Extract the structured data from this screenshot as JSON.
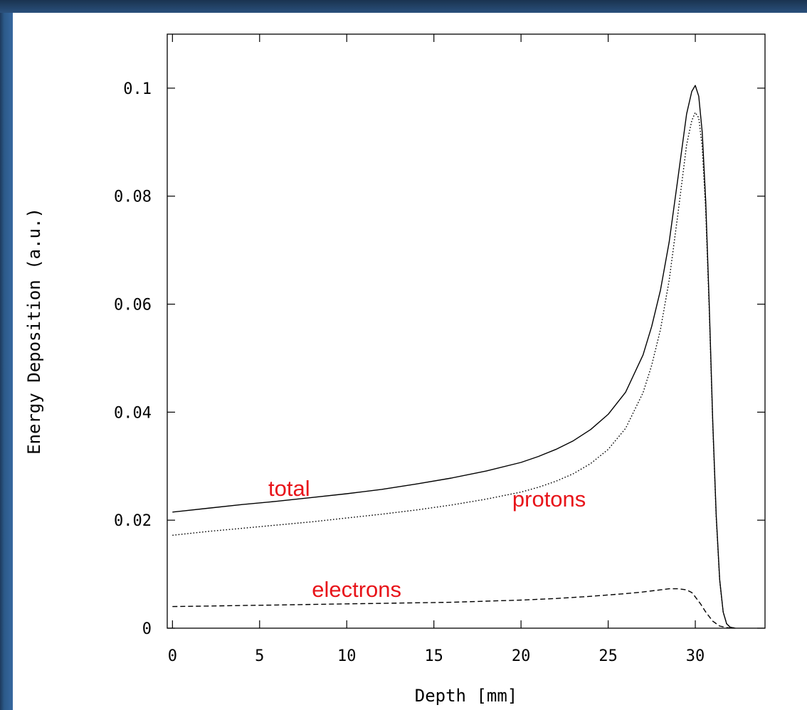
{
  "chart_data": {
    "type": "line",
    "xlabel": "Depth [mm]",
    "ylabel": "Energy Deposition (a.u.)",
    "xlim": [
      -0.3,
      34
    ],
    "ylim": [
      0,
      0.11
    ],
    "xticks": [
      "0",
      "5",
      "10",
      "15",
      "20",
      "25",
      "30"
    ],
    "yticks": [
      "0",
      "0.02",
      "0.04",
      "0.06",
      "0.08",
      "0.1"
    ],
    "grid": false,
    "series": [
      {
        "name": "total",
        "style": "solid",
        "color": "#000000",
        "x": [
          0,
          2,
          4,
          6,
          8,
          10,
          12,
          14,
          16,
          18,
          20,
          21,
          22,
          23,
          24,
          25,
          26,
          27,
          27.5,
          28,
          28.5,
          29,
          29.5,
          29.8,
          30.0,
          30.2,
          30.4,
          30.6,
          30.8,
          31.0,
          31.2,
          31.4,
          31.6,
          31.8,
          32.0,
          32.3
        ],
        "y": [
          0.0215,
          0.0222,
          0.0229,
          0.0235,
          0.0242,
          0.0249,
          0.0257,
          0.0267,
          0.0278,
          0.0291,
          0.0307,
          0.0318,
          0.0331,
          0.0347,
          0.0368,
          0.0396,
          0.0437,
          0.0506,
          0.0559,
          0.0626,
          0.0715,
          0.0833,
          0.0952,
          0.0994,
          0.1005,
          0.0985,
          0.0918,
          0.079,
          0.06,
          0.0385,
          0.021,
          0.009,
          0.003,
          0.0008,
          0.0002,
          0.0
        ]
      },
      {
        "name": "protons",
        "style": "dotted",
        "color": "#000000",
        "x": [
          0,
          2,
          4,
          6,
          8,
          10,
          12,
          14,
          16,
          18,
          20,
          21,
          22,
          23,
          24,
          25,
          26,
          27,
          27.5,
          28,
          28.5,
          29,
          29.5,
          29.8,
          30.0,
          30.2,
          30.4,
          30.6,
          30.8,
          31.0,
          31.2,
          31.4,
          31.6,
          31.8,
          32.0,
          32.3
        ],
        "y": [
          0.0172,
          0.0179,
          0.0185,
          0.0191,
          0.0197,
          0.0204,
          0.0211,
          0.0219,
          0.0228,
          0.0239,
          0.0252,
          0.0261,
          0.0272,
          0.0286,
          0.0305,
          0.0331,
          0.037,
          0.0436,
          0.0487,
          0.0553,
          0.0644,
          0.0767,
          0.0895,
          0.094,
          0.0955,
          0.0945,
          0.089,
          0.0772,
          0.059,
          0.038,
          0.0205,
          0.0088,
          0.003,
          0.0008,
          0.0002,
          0.0
        ]
      },
      {
        "name": "electrons",
        "style": "dashed",
        "color": "#000000",
        "x": [
          0,
          2,
          4,
          6,
          8,
          10,
          12,
          14,
          16,
          18,
          20,
          22,
          24,
          26,
          27,
          28,
          28.5,
          29,
          29.5,
          29.8,
          30.0,
          30.3,
          30.6,
          31.0,
          31.4,
          31.8,
          32.2
        ],
        "y": [
          0.004,
          0.0041,
          0.0042,
          0.0043,
          0.0044,
          0.0045,
          0.0046,
          0.0047,
          0.0048,
          0.005,
          0.0052,
          0.0055,
          0.0059,
          0.0064,
          0.0067,
          0.0071,
          0.0073,
          0.0073,
          0.0071,
          0.0066,
          0.0058,
          0.0045,
          0.003,
          0.0013,
          0.0004,
          0.0001,
          0.0
        ]
      }
    ],
    "annotations": [
      {
        "text": "total",
        "x": 5.5,
        "y": 0.0245
      },
      {
        "text": "protons",
        "x": 19.5,
        "y": 0.0225
      },
      {
        "text": "electrons",
        "x": 8.0,
        "y": 0.0058
      }
    ]
  }
}
